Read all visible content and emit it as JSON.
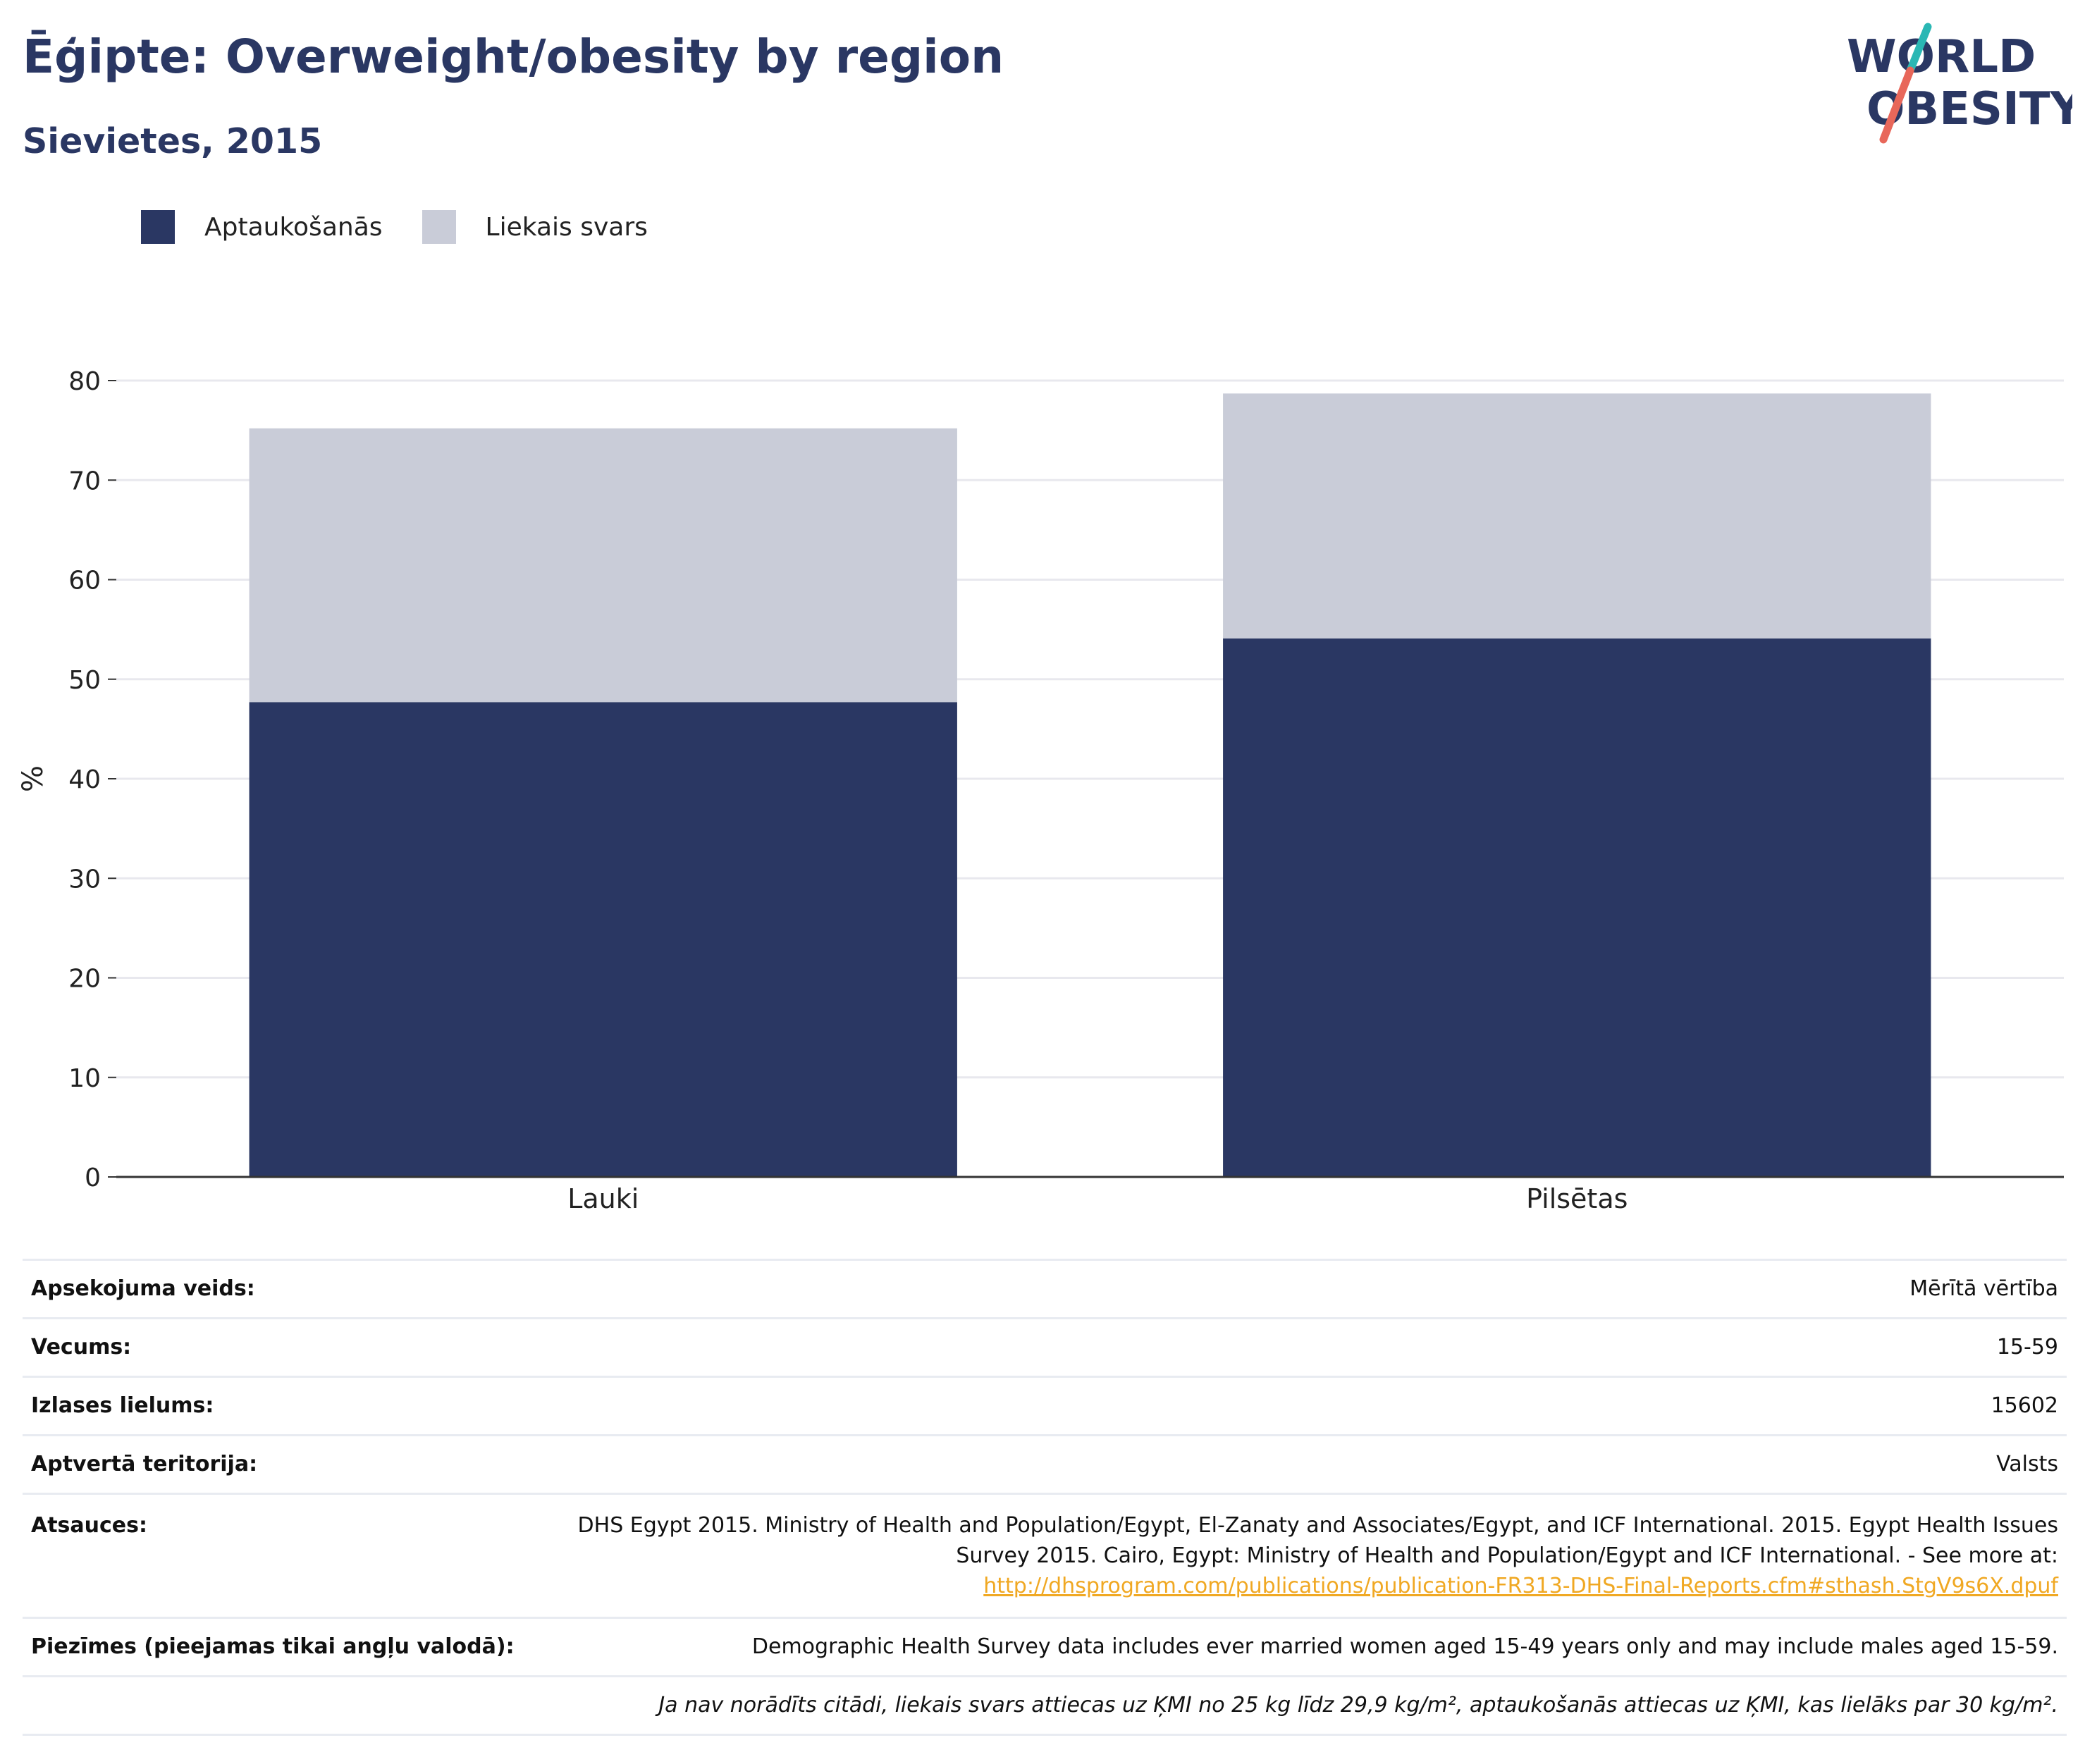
{
  "header": {
    "title": "Ēģipte: Overweight/obesity by region",
    "subtitle": "Sievietes, 2015"
  },
  "logo": {
    "line1": "WORLD",
    "line2": "OBESITY",
    "colors": {
      "navy": "#2a3763",
      "teal": "#2ab7b4",
      "coral": "#e8675a"
    }
  },
  "legend": {
    "items": [
      {
        "label": "Aptaukošanās",
        "color": "#2a3763"
      },
      {
        "label": "Liekais svars",
        "color": "#c9ccd8"
      }
    ]
  },
  "chart_data": {
    "type": "bar",
    "stacked": true,
    "categories": [
      "Lauki",
      "Pilsētas"
    ],
    "series": [
      {
        "name": "Aptaukošanās",
        "values": [
          47.7,
          54.1
        ],
        "color": "#2a3763"
      },
      {
        "name": "Liekais svars",
        "values": [
          27.5,
          24.6
        ],
        "color": "#c9ccd8"
      }
    ],
    "xlabel": "",
    "ylabel": "%",
    "ylim": [
      0,
      80
    ],
    "yticks": [
      0,
      10,
      20,
      30,
      40,
      50,
      60,
      70,
      80
    ],
    "grid": true,
    "legend_position": "top-left"
  },
  "info": {
    "rows": [
      {
        "key": "Apsekojuma veids:",
        "value": "Mērītā vērtība"
      },
      {
        "key": "Vecums:",
        "value": "15-59"
      },
      {
        "key": "Izlases lielums:",
        "value": "15602"
      },
      {
        "key": "Aptvertā teritorija:",
        "value": "Valsts"
      }
    ],
    "references": {
      "key": "Atsauces:",
      "text": "DHS Egypt 2015. Ministry of Health and Population/Egypt, El-Zanaty and Associates/Egypt, and ICF International. 2015. Egypt Health Issues Survey 2015. Cairo, Egypt: Ministry of Health and Population/Egypt and ICF International. - See more at:",
      "link": "http://dhsprogram.com/publications/publication-FR313-DHS-Final-Reports.cfm#sthash.StgV9s6X.dpuf"
    },
    "notes": {
      "key": "Piezīmes (pieejamas tikai angļu valodā):",
      "value": "Demographic Health Survey data includes ever married women aged 15-49 years only and may include males aged 15-59."
    },
    "definition": "Ja nav norādīts citādi, liekais svars attiecas uz ĶMI no 25 kg līdz 29,9 kg/m², aptaukošanās attiecas uz ĶMI, kas lielāks par 30 kg/m²."
  }
}
